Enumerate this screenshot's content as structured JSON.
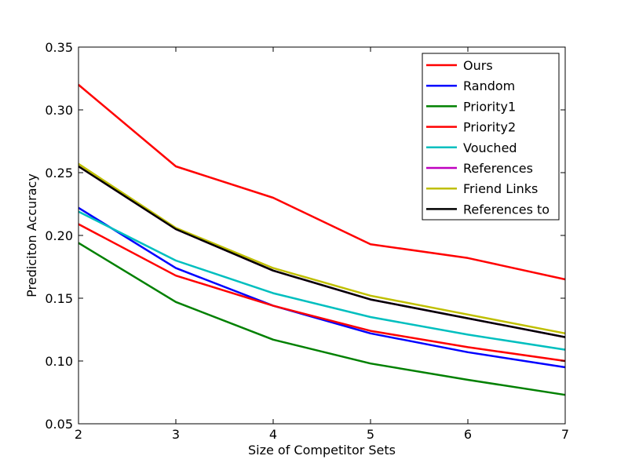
{
  "chart_data": {
    "type": "line",
    "title": "",
    "xlabel": "Size of Competitor Sets",
    "ylabel": "Prediciton Accuracy",
    "x": [
      2,
      3,
      4,
      5,
      6,
      7
    ],
    "xlim": [
      2,
      7
    ],
    "ylim": [
      0.05,
      0.35
    ],
    "xticks": [
      "2",
      "3",
      "4",
      "5",
      "6",
      "7"
    ],
    "yticks": [
      "0.05",
      "0.10",
      "0.15",
      "0.20",
      "0.25",
      "0.30",
      "0.35"
    ],
    "grid": false,
    "legend_position": "top-right",
    "series": [
      {
        "name": "Ours",
        "color": "#ff0000",
        "values": [
          0.32,
          0.255,
          0.23,
          0.193,
          0.182,
          0.165
        ]
      },
      {
        "name": "Random",
        "color": "#0000ff",
        "values": [
          0.222,
          0.174,
          0.144,
          0.122,
          0.107,
          0.095
        ]
      },
      {
        "name": "Priority1",
        "color": "#008000",
        "values": [
          0.194,
          0.147,
          0.117,
          0.098,
          0.085,
          0.073
        ]
      },
      {
        "name": "Priority2",
        "color": "#ff0000",
        "values": [
          0.209,
          0.168,
          0.144,
          0.124,
          0.111,
          0.1
        ]
      },
      {
        "name": "Vouched",
        "color": "#00bfbf",
        "values": [
          0.219,
          0.18,
          0.154,
          0.135,
          0.121,
          0.109
        ]
      },
      {
        "name": "References",
        "color": "#bf00bf",
        "values": [
          0.255,
          0.205,
          0.172,
          0.149,
          0.134,
          0.119
        ]
      },
      {
        "name": "Friend Links",
        "color": "#bfbf00",
        "values": [
          0.257,
          0.206,
          0.174,
          0.152,
          0.137,
          0.122
        ]
      },
      {
        "name": "References to",
        "color": "#000000",
        "values": [
          0.255,
          0.205,
          0.172,
          0.149,
          0.134,
          0.119
        ]
      }
    ]
  }
}
